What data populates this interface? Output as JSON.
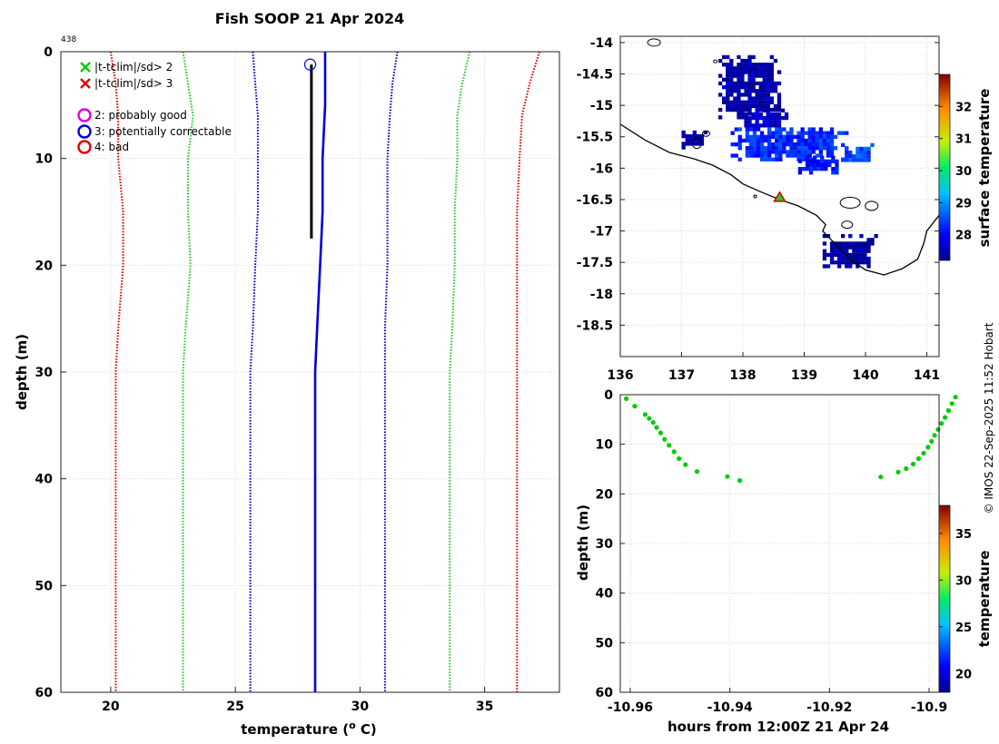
{
  "page": {
    "title": "Fish SOOP 21 Apr 2024",
    "profile_id": "438",
    "credit": "© IMOS 22-Sep-2025 11:52 Hobart"
  },
  "legend": {
    "items": [
      {
        "marker": "x",
        "color": "#00cc00",
        "label": "|t-tclim|/sd> 2"
      },
      {
        "marker": "x",
        "color": "#e00000",
        "label": "|t-tclim|/sd> 3"
      },
      {
        "marker": "o",
        "color": "#dd00dd",
        "label": "2: probably good"
      },
      {
        "marker": "o",
        "color": "#0000dd",
        "label": "3: potentially correctable"
      },
      {
        "marker": "o",
        "color": "#e00000",
        "label": "4: bad"
      }
    ]
  },
  "chart_data": [
    {
      "type": "line",
      "name": "profile",
      "xlabel": "temperature (o C)",
      "ylabel": "depth (m)",
      "xlim": [
        18,
        38
      ],
      "ylim": [
        0,
        60
      ],
      "yreversed": true,
      "xticks": [
        20,
        25,
        30,
        35
      ],
      "yticks": [
        0,
        10,
        20,
        30,
        40,
        50,
        60
      ],
      "grid": true,
      "series": [
        {
          "name": "clim +3sd",
          "color": "#e00000",
          "style": "dotted",
          "points": [
            [
              37.2,
              0
            ],
            [
              36.8,
              3
            ],
            [
              36.5,
              6
            ],
            [
              36.4,
              10
            ],
            [
              36.3,
              15
            ],
            [
              36.3,
              20
            ],
            [
              36.3,
              28
            ],
            [
              36.3,
              30
            ],
            [
              36.3,
              40
            ],
            [
              36.3,
              60
            ]
          ]
        },
        {
          "name": "clim +2sd",
          "color": "#22cc22",
          "style": "dotted",
          "points": [
            [
              34.4,
              0
            ],
            [
              34.1,
              3
            ],
            [
              33.9,
              6
            ],
            [
              33.9,
              10
            ],
            [
              33.8,
              15
            ],
            [
              33.8,
              20
            ],
            [
              33.7,
              26
            ],
            [
              33.6,
              30
            ],
            [
              33.6,
              40
            ],
            [
              33.6,
              60
            ]
          ]
        },
        {
          "name": "clim +1sd",
          "color": "#0000cc",
          "style": "dotted",
          "points": [
            [
              31.5,
              0
            ],
            [
              31.3,
              3
            ],
            [
              31.2,
              6
            ],
            [
              31.1,
              10
            ],
            [
              31.1,
              15
            ],
            [
              31.1,
              20
            ],
            [
              31.0,
              26
            ],
            [
              31.0,
              30
            ],
            [
              31.0,
              40
            ],
            [
              31.0,
              60
            ]
          ]
        },
        {
          "name": "climatology mean",
          "color": "#0000dd",
          "style": "solid",
          "width": 2.6,
          "points": [
            [
              28.6,
              0
            ],
            [
              28.6,
              3
            ],
            [
              28.6,
              5
            ],
            [
              28.5,
              10
            ],
            [
              28.5,
              15
            ],
            [
              28.4,
              20
            ],
            [
              28.3,
              25
            ],
            [
              28.2,
              30
            ],
            [
              28.2,
              40
            ],
            [
              28.2,
              60
            ]
          ]
        },
        {
          "name": "clim -1sd",
          "color": "#0000cc",
          "style": "dotted",
          "points": [
            [
              25.7,
              0
            ],
            [
              25.8,
              3
            ],
            [
              25.9,
              6
            ],
            [
              25.9,
              10
            ],
            [
              25.9,
              15
            ],
            [
              25.8,
              20
            ],
            [
              25.7,
              26
            ],
            [
              25.6,
              30
            ],
            [
              25.6,
              40
            ],
            [
              25.6,
              60
            ]
          ]
        },
        {
          "name": "clim -2sd",
          "color": "#22cc22",
          "style": "dotted",
          "points": [
            [
              22.9,
              0
            ],
            [
              23.1,
              3
            ],
            [
              23.3,
              6
            ],
            [
              23.1,
              10
            ],
            [
              23.1,
              15
            ],
            [
              23.2,
              20
            ],
            [
              23.0,
              26
            ],
            [
              22.9,
              30
            ],
            [
              22.9,
              40
            ],
            [
              22.9,
              60
            ]
          ]
        },
        {
          "name": "clim -3sd",
          "color": "#e00000",
          "style": "dotted",
          "points": [
            [
              20.0,
              0
            ],
            [
              20.2,
              3
            ],
            [
              20.3,
              6
            ],
            [
              20.3,
              10
            ],
            [
              20.5,
              15
            ],
            [
              20.5,
              20
            ],
            [
              20.3,
              26
            ],
            [
              20.2,
              30
            ],
            [
              20.2,
              40
            ],
            [
              20.2,
              60
            ]
          ]
        },
        {
          "name": "measured",
          "color": "#000000",
          "style": "solid",
          "width": 3,
          "points": [
            [
              28.05,
              1.2
            ],
            [
              28.05,
              5
            ],
            [
              28.05,
              10
            ],
            [
              28.05,
              15
            ],
            [
              28.05,
              17.5
            ]
          ]
        }
      ],
      "flags": [
        {
          "x": 28.0,
          "y": 1.2,
          "color": "#0000dd",
          "marker": "o"
        }
      ]
    },
    {
      "type": "heatmap",
      "name": "surface temperature map",
      "xlim": [
        136,
        141.2
      ],
      "ylim": [
        -19,
        -13.9
      ],
      "xticks": [
        136,
        137,
        138,
        139,
        140,
        141
      ],
      "yticks": [
        -14,
        -14.5,
        -15,
        -15.5,
        -16,
        -16.5,
        -17,
        -17.5,
        -18,
        -18.5
      ],
      "colorbar": {
        "label": "surface temperature",
        "min": 27.2,
        "max": 33.0,
        "ticks": [
          28,
          29,
          30,
          31,
          32
        ]
      },
      "position_marker": {
        "lon": 138.6,
        "lat": -16.47
      },
      "coast": [
        [
          136.0,
          -15.3
        ],
        [
          136.4,
          -15.55
        ],
        [
          136.8,
          -15.75
        ],
        [
          137.2,
          -15.85
        ],
        [
          137.5,
          -15.95
        ],
        [
          137.8,
          -16.1
        ],
        [
          138.0,
          -16.25
        ],
        [
          138.3,
          -16.38
        ],
        [
          138.6,
          -16.5
        ],
        [
          138.9,
          -16.6
        ],
        [
          139.2,
          -16.75
        ],
        [
          139.35,
          -16.9
        ],
        [
          139.3,
          -17.0
        ],
        [
          139.5,
          -17.2
        ],
        [
          139.75,
          -17.45
        ],
        [
          140.0,
          -17.62
        ],
        [
          140.3,
          -17.7
        ],
        [
          140.6,
          -17.6
        ],
        [
          140.85,
          -17.45
        ],
        [
          140.95,
          -17.2
        ],
        [
          141.0,
          -17.0
        ],
        [
          141.2,
          -16.75
        ]
      ],
      "sst_patches": [
        {
          "lon": [
            137.6,
            138.6
          ],
          "lat": [
            -14.2,
            -15.2
          ],
          "temp": 27.4
        },
        {
          "lon": [
            137.9,
            138.7
          ],
          "lat": [
            -15.05,
            -15.35
          ],
          "temp": 27.6
        },
        {
          "lon": [
            137.0,
            137.4
          ],
          "lat": [
            -15.4,
            -15.65
          ],
          "temp": 27.3
        },
        {
          "lon": [
            137.8,
            139.7
          ],
          "lat": [
            -15.35,
            -15.85
          ],
          "temp": 28.3
        },
        {
          "lon": [
            138.9,
            139.6
          ],
          "lat": [
            -15.8,
            -16.05
          ],
          "temp": 28.1
        },
        {
          "lon": [
            139.6,
            140.1
          ],
          "lat": [
            -15.6,
            -15.9
          ],
          "temp": 28.5
        },
        {
          "lon": [
            139.3,
            140.15
          ],
          "lat": [
            -17.05,
            -17.55
          ],
          "temp": 27.3
        }
      ]
    },
    {
      "type": "scatter",
      "name": "time vs depth",
      "xlabel": "hours from 12:00Z 21 Apr 24",
      "ylabel": "depth (m)",
      "xlim": [
        -10.962,
        -10.898
      ],
      "ylim": [
        0,
        60
      ],
      "yreversed": true,
      "xticks": [
        -10.96,
        -10.94,
        -10.92,
        -10.9
      ],
      "xtick_labels": [
        "-10.96",
        "-10.94",
        "-10.92",
        "-10.9"
      ],
      "yticks": [
        0,
        10,
        20,
        30,
        40,
        50,
        60
      ],
      "colorbar": {
        "label": "temperature",
        "min": 18,
        "max": 38,
        "ticks": [
          20,
          25,
          30,
          35
        ]
      },
      "point_color": "#00cc00",
      "points": [
        [
          -10.9608,
          0.8
        ],
        [
          -10.9591,
          2.3
        ],
        [
          -10.957,
          4.0
        ],
        [
          -10.9562,
          4.8
        ],
        [
          -10.9554,
          5.6
        ],
        [
          -10.9547,
          6.6
        ],
        [
          -10.9539,
          7.7
        ],
        [
          -10.9531,
          9.0
        ],
        [
          -10.9522,
          10.2
        ],
        [
          -10.9512,
          11.5
        ],
        [
          -10.9502,
          12.9
        ],
        [
          -10.9489,
          14.1
        ],
        [
          -10.9466,
          15.5
        ],
        [
          -10.9405,
          16.5
        ],
        [
          -10.938,
          17.3
        ],
        [
          -10.9097,
          16.6
        ],
        [
          -10.9062,
          15.6
        ],
        [
          -10.9046,
          14.9
        ],
        [
          -10.9032,
          14.0
        ],
        [
          -10.9021,
          12.9
        ],
        [
          -10.9011,
          11.8
        ],
        [
          -10.9002,
          10.6
        ],
        [
          -10.8995,
          9.4
        ],
        [
          -10.8989,
          8.2
        ],
        [
          -10.8982,
          7.0
        ],
        [
          -10.8975,
          5.8
        ],
        [
          -10.8968,
          4.6
        ],
        [
          -10.8961,
          3.2
        ],
        [
          -10.8954,
          1.8
        ],
        [
          -10.8947,
          0.5
        ]
      ]
    }
  ]
}
